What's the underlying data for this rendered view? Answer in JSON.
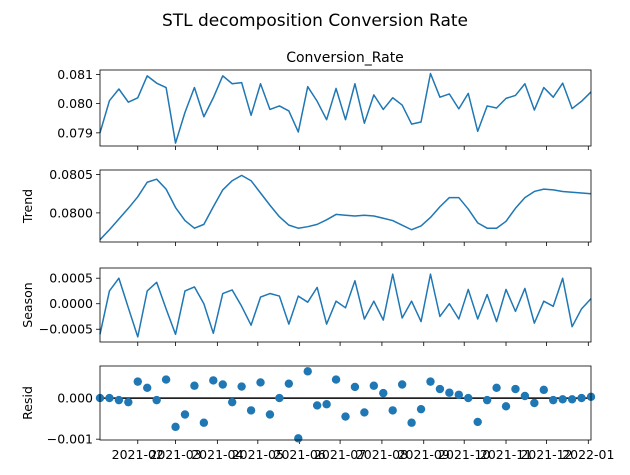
{
  "chart_data": {
    "type": "line",
    "title": "STL decomposition Conversion Rate",
    "series_name": "Conversion_Rate",
    "x_start": "2021-01-04",
    "x_step_days": 7,
    "x_tick_labels": [
      "2021-02",
      "2021-03",
      "2021-04",
      "2021-05",
      "2021-06",
      "2021-07",
      "2021-08",
      "2021-09",
      "2021-10",
      "2021-11",
      "2021-12",
      "2022-01"
    ],
    "x_tick_dates": [
      "2021-02-01",
      "2021-03-01",
      "2021-04-01",
      "2021-05-01",
      "2021-06-01",
      "2021-07-01",
      "2021-08-01",
      "2021-09-01",
      "2021-10-01",
      "2021-11-01",
      "2021-12-01",
      "2022-01-01"
    ],
    "panels": [
      {
        "key": "observed",
        "ylabel": "",
        "kind": "line",
        "ylim": [
          0.07855,
          0.08115
        ],
        "yticks": [
          0.079,
          0.08,
          0.081
        ],
        "ytick_labels": [
          "0.079",
          "0.080",
          "0.081"
        ],
        "values": [
          0.079,
          0.0801,
          0.0805,
          0.08005,
          0.0802,
          0.08095,
          0.0807,
          0.08055,
          0.07865,
          0.0797,
          0.08055,
          0.07955,
          0.0802,
          0.08095,
          0.08068,
          0.08072,
          0.0796,
          0.08068,
          0.0798,
          0.07992,
          0.07975,
          0.07903,
          0.08058,
          0.08008,
          0.07945,
          0.08052,
          0.07945,
          0.08068,
          0.07933,
          0.0803,
          0.0798,
          0.0802,
          0.07995,
          0.0793,
          0.07937,
          0.08103,
          0.08022,
          0.08033,
          0.07982,
          0.08035,
          0.07905,
          0.07992,
          0.07985,
          0.08018,
          0.08028,
          0.08068,
          0.07978,
          0.08055,
          0.08022,
          0.0807,
          0.07983,
          0.08008,
          0.0804
        ]
      },
      {
        "key": "trend",
        "ylabel": "Trend",
        "kind": "line",
        "ylim": [
          0.07962,
          0.08056
        ],
        "yticks": [
          0.08,
          0.0805
        ],
        "ytick_labels": [
          "0.0800",
          "0.0805"
        ],
        "values": [
          0.07965,
          0.07978,
          0.07992,
          0.08006,
          0.08021,
          0.0804,
          0.08044,
          0.08031,
          0.08007,
          0.0799,
          0.0798,
          0.07985,
          0.08008,
          0.0803,
          0.08042,
          0.08049,
          0.08042,
          0.08026,
          0.0801,
          0.07995,
          0.07984,
          0.0798,
          0.07982,
          0.07985,
          0.07991,
          0.07998,
          0.07997,
          0.07996,
          0.07997,
          0.07996,
          0.07993,
          0.0799,
          0.07984,
          0.07978,
          0.07983,
          0.07994,
          0.08008,
          0.0802,
          0.0802,
          0.08005,
          0.07987,
          0.0798,
          0.0798,
          0.07989,
          0.08006,
          0.0802,
          0.08028,
          0.08031,
          0.0803,
          0.08028,
          0.08027,
          0.08026,
          0.08025
        ]
      },
      {
        "key": "season",
        "ylabel": "Season",
        "kind": "line",
        "ylim": [
          -0.00075,
          0.0007
        ],
        "yticks": [
          -0.0005,
          0.0,
          0.0005
        ],
        "ytick_labels": [
          "−0.0005",
          "0.0000",
          "0.0005"
        ],
        "values": [
          -0.0006,
          0.00025,
          0.0005,
          -8e-05,
          -0.00065,
          0.00025,
          0.00042,
          -0.0001,
          -0.0006,
          0.00025,
          0.00033,
          0.0,
          -0.00058,
          0.0002,
          0.00027,
          -5e-05,
          -0.00042,
          0.00013,
          0.0002,
          0.00015,
          -0.0004,
          0.00015,
          3e-05,
          0.00032,
          -0.0004,
          5e-05,
          -8e-05,
          0.00045,
          -0.0003,
          5e-05,
          -0.00032,
          0.00058,
          -0.00028,
          5e-05,
          -0.00035,
          0.00058,
          -0.00025,
          0.0,
          -0.0003,
          0.00028,
          -0.0003,
          0.00018,
          -0.00035,
          0.00028,
          -0.00015,
          0.0003,
          -0.00038,
          5e-05,
          -5e-05,
          0.0005,
          -0.00045,
          -0.0001,
          0.0001
        ]
      },
      {
        "key": "resid",
        "ylabel": "Resid",
        "kind": "scatter",
        "ylim": [
          -0.00102,
          0.00078
        ],
        "yticks": [
          -0.001,
          0.0
        ],
        "ytick_labels": [
          "−0.001",
          "0.000"
        ],
        "zero_line": true,
        "values": [
          0.0,
          0.0,
          -5e-05,
          -0.0001,
          0.0004,
          0.00025,
          -5e-05,
          0.00045,
          -0.0007,
          -0.0004,
          0.0003,
          -0.0006,
          0.00043,
          0.00033,
          -0.0001,
          0.00028,
          -0.0003,
          0.00038,
          -0.0004,
          0.0,
          0.00035,
          -0.00098,
          0.00065,
          -0.00018,
          -0.00015,
          0.00045,
          -0.00045,
          0.00027,
          -0.00035,
          0.0003,
          0.00012,
          -0.0003,
          0.00033,
          -0.0006,
          -0.00027,
          0.0004,
          0.00022,
          0.00013,
          8e-05,
          0.0,
          -0.00058,
          -5e-05,
          0.00025,
          -0.0002,
          0.00022,
          5e-05,
          -0.00012,
          0.0002,
          -5e-05,
          -3e-05,
          -3e-05,
          0.0,
          3e-05
        ]
      }
    ]
  }
}
